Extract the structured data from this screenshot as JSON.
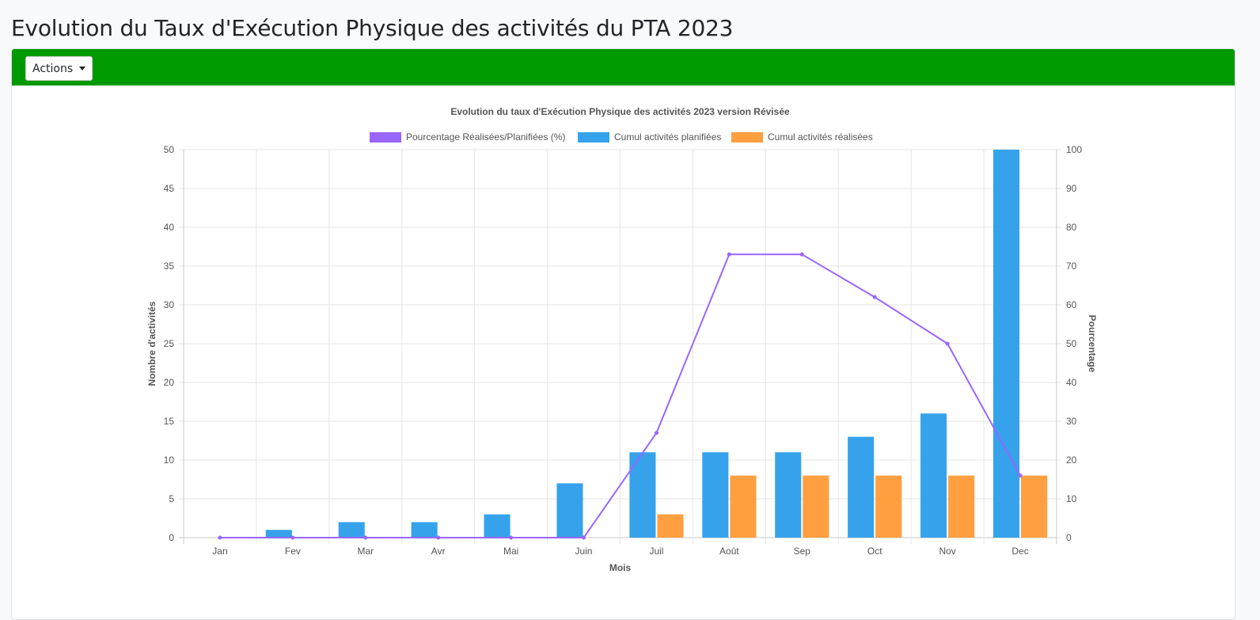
{
  "page": {
    "title": "Evolution du Taux d'Exécution Physique des activités du PTA 2023",
    "actions_label": "Actions"
  },
  "colors": {
    "header_green": "#009900",
    "planned": "#36a2eb",
    "realized": "#ff9f40",
    "percentage": "#9966ff"
  },
  "chart_data": {
    "type": "bar",
    "title": "Evolution du taux d'Exécution Physique des activités 2023 version Révisée",
    "xlabel": "Mois",
    "ylabel": "Nombre d'activités",
    "y2label": "Pourcentage",
    "legend_position": "top",
    "grid": true,
    "categories": [
      "Jan",
      "Fev",
      "Mar",
      "Avr",
      "Mai",
      "Juin",
      "Juil",
      "Août",
      "Sep",
      "Oct",
      "Nov",
      "Dec"
    ],
    "ylim": [
      0,
      50
    ],
    "yticks": [
      0,
      5,
      10,
      15,
      20,
      25,
      30,
      35,
      40,
      45,
      50
    ],
    "y2lim": [
      0,
      100
    ],
    "y2ticks": [
      0,
      10,
      20,
      30,
      40,
      50,
      60,
      70,
      80,
      90,
      100
    ],
    "series": [
      {
        "name": "Pourcentage Réalisées/Planifiées (%)",
        "type": "line",
        "axis": "right",
        "color": "#9966ff",
        "values": [
          0,
          0,
          0,
          0,
          0,
          0,
          27,
          73,
          73,
          62,
          50,
          16
        ]
      },
      {
        "name": "Cumul activités planifiées",
        "type": "bar",
        "axis": "left",
        "color": "#36a2eb",
        "values": [
          0,
          1,
          2,
          2,
          3,
          7,
          11,
          11,
          11,
          13,
          16,
          50
        ]
      },
      {
        "name": "Cumul activités réalisées",
        "type": "bar",
        "axis": "left",
        "color": "#ff9f40",
        "values": [
          0,
          0,
          0,
          0,
          0,
          0,
          3,
          8,
          8,
          8,
          8,
          8
        ]
      }
    ]
  }
}
